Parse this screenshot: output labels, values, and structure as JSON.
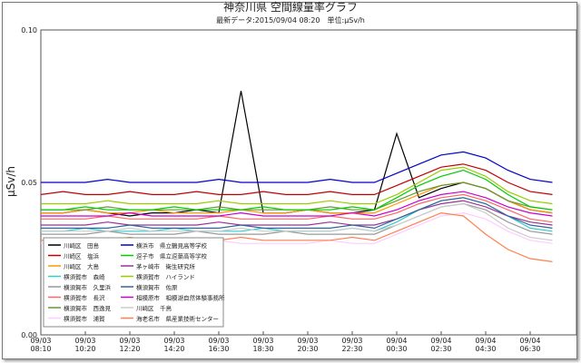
{
  "chart_data": {
    "type": "line",
    "title": "神奈川県 空間線量率グラフ",
    "subtitle": "最新データ:2015/09/04 08:20　単位:μSv/h",
    "y_label": "μSv/h",
    "categories": [
      "08:10",
      null,
      "10:20",
      null,
      "12:20",
      null,
      "14:20",
      null,
      "16:30",
      null,
      "18:30",
      null,
      "20:30",
      null,
      "22:30",
      null,
      "00:30",
      null,
      "02:30",
      null,
      "04:30",
      null,
      "06:30",
      null
    ],
    "category_dates": [
      "09/03",
      null,
      "09/03",
      null,
      "09/03",
      null,
      "09/03",
      null,
      "09/03",
      null,
      "09/03",
      null,
      "09/03",
      null,
      "09/03",
      null,
      "09/04",
      null,
      "09/04",
      null,
      "09/04",
      null,
      "09/04",
      null
    ],
    "ylim": [
      0,
      0.1
    ],
    "yticks": [
      {
        "value": 0,
        "label": "0.00"
      },
      0.05,
      {
        "value": 0.1,
        "label": "0.10"
      }
    ],
    "grid": false,
    "series": [
      {
        "name": "川崎区　田島",
        "color": "#000000",
        "values": [
          0.04,
          0.04,
          0.041,
          0.04,
          0.039,
          0.04,
          0.04,
          0.041,
          0.04,
          0.08,
          0.04,
          0.04,
          0.041,
          0.04,
          0.04,
          0.041,
          0.066,
          0.045,
          0.048,
          0.05,
          0.048,
          0.044,
          0.041,
          0.04
        ]
      },
      {
        "name": "川崎区　塩浜",
        "color": "#c00000",
        "values": [
          0.046,
          0.047,
          0.046,
          0.046,
          0.047,
          0.046,
          0.046,
          0.047,
          0.046,
          0.046,
          0.047,
          0.046,
          0.046,
          0.047,
          0.046,
          0.046,
          0.049,
          0.052,
          0.055,
          0.056,
          0.054,
          0.05,
          0.047,
          0.046
        ]
      },
      {
        "name": "川崎区　大島",
        "color": "#ff9900",
        "values": [
          0.04,
          0.04,
          0.041,
          0.04,
          0.04,
          0.041,
          0.04,
          0.04,
          0.04,
          0.041,
          0.04,
          0.04,
          0.041,
          0.04,
          0.04,
          0.04,
          0.043,
          0.046,
          0.049,
          0.05,
          0.048,
          0.044,
          0.041,
          0.04
        ]
      },
      {
        "name": "横須賀市　森崎",
        "color": "#33cccc",
        "values": [
          0.034,
          0.034,
          0.035,
          0.034,
          0.034,
          0.034,
          0.035,
          0.034,
          0.034,
          0.034,
          0.035,
          0.034,
          0.034,
          0.034,
          0.035,
          0.034,
          0.037,
          0.041,
          0.044,
          0.045,
          0.043,
          0.039,
          0.035,
          0.034
        ]
      },
      {
        "name": "横須賀市　久里浜",
        "color": "#999999",
        "values": [
          0.033,
          0.033,
          0.033,
          0.034,
          0.033,
          0.033,
          0.033,
          0.034,
          0.033,
          0.033,
          0.033,
          0.034,
          0.033,
          0.033,
          0.033,
          0.033,
          0.036,
          0.039,
          0.042,
          0.043,
          0.041,
          0.037,
          0.034,
          0.033
        ]
      },
      {
        "name": "横須賀市　長沢",
        "color": "#ff6666",
        "values": [
          0.038,
          0.038,
          0.038,
          0.039,
          0.038,
          0.038,
          0.038,
          0.038,
          0.039,
          0.038,
          0.038,
          0.038,
          0.038,
          0.039,
          0.038,
          0.038,
          0.04,
          0.043,
          0.045,
          0.046,
          0.044,
          0.041,
          0.038,
          0.037
        ]
      },
      {
        "name": "横須賀市　西逸見",
        "color": "#669933",
        "values": [
          0.041,
          0.041,
          0.041,
          0.042,
          0.041,
          0.041,
          0.041,
          0.041,
          0.042,
          0.041,
          0.041,
          0.041,
          0.041,
          0.042,
          0.041,
          0.041,
          0.044,
          0.047,
          0.049,
          0.05,
          0.048,
          0.044,
          0.042,
          0.041
        ]
      },
      {
        "name": "横須賀市　浦賀",
        "color": "#ffccff",
        "values": [
          0.03,
          0.03,
          0.03,
          0.031,
          0.03,
          0.03,
          0.03,
          0.03,
          0.031,
          0.03,
          0.03,
          0.03,
          0.03,
          0.031,
          0.03,
          0.03,
          0.033,
          0.036,
          0.039,
          0.04,
          0.038,
          0.034,
          0.031,
          0.03
        ]
      },
      {
        "name": "横浜市　県立鶴見高等学校",
        "color": "#0000cc",
        "values": [
          0.05,
          0.05,
          0.05,
          0.051,
          0.05,
          0.05,
          0.05,
          0.05,
          0.051,
          0.05,
          0.05,
          0.05,
          0.05,
          0.051,
          0.05,
          0.05,
          0.053,
          0.056,
          0.059,
          0.06,
          0.058,
          0.054,
          0.051,
          0.05
        ]
      },
      {
        "name": "逗子市　県立逗葉高等学校",
        "color": "#00cc00",
        "values": [
          0.041,
          0.041,
          0.042,
          0.041,
          0.041,
          0.041,
          0.042,
          0.041,
          0.041,
          0.041,
          0.042,
          0.041,
          0.041,
          0.041,
          0.042,
          0.041,
          0.045,
          0.049,
          0.052,
          0.054,
          0.051,
          0.046,
          0.042,
          0.041
        ]
      },
      {
        "name": "茅ヶ崎市　衛生研究所",
        "color": "#993399",
        "values": [
          0.036,
          0.036,
          0.036,
          0.037,
          0.036,
          0.036,
          0.036,
          0.036,
          0.037,
          0.036,
          0.036,
          0.036,
          0.036,
          0.037,
          0.036,
          0.036,
          0.038,
          0.041,
          0.043,
          0.044,
          0.042,
          0.039,
          0.037,
          0.036
        ]
      },
      {
        "name": "横須賀市　ハイランド",
        "color": "#99cc00",
        "values": [
          0.043,
          0.043,
          0.043,
          0.044,
          0.043,
          0.043,
          0.043,
          0.043,
          0.044,
          0.043,
          0.043,
          0.043,
          0.043,
          0.044,
          0.043,
          0.043,
          0.046,
          0.05,
          0.054,
          0.055,
          0.052,
          0.047,
          0.044,
          0.043
        ]
      },
      {
        "name": "横須賀市　佐原",
        "color": "#336699",
        "values": [
          0.035,
          0.035,
          0.035,
          0.035,
          0.036,
          0.035,
          0.035,
          0.035,
          0.035,
          0.036,
          0.035,
          0.035,
          0.035,
          0.035,
          0.036,
          0.035,
          0.038,
          0.041,
          0.044,
          0.045,
          0.043,
          0.039,
          0.036,
          0.035
        ]
      },
      {
        "name": "相模原市　相模湖自然体験事務所",
        "color": "#cc00cc",
        "values": [
          0.039,
          0.039,
          0.039,
          0.039,
          0.04,
          0.039,
          0.039,
          0.039,
          0.039,
          0.04,
          0.039,
          0.039,
          0.039,
          0.039,
          0.04,
          0.039,
          0.041,
          0.044,
          0.046,
          0.047,
          0.045,
          0.042,
          0.04,
          0.039
        ]
      },
      {
        "name": "川崎区　千鳥",
        "color": "#cccccc",
        "values": [
          0.034,
          0.034,
          0.034,
          0.034,
          0.035,
          0.034,
          0.034,
          0.034,
          0.034,
          0.035,
          0.034,
          0.034,
          0.034,
          0.034,
          0.035,
          0.034,
          0.036,
          0.039,
          0.042,
          0.043,
          0.04,
          0.035,
          0.032,
          0.031
        ]
      },
      {
        "name": "海老名市　県産業技術センター",
        "color": "#ff7f50",
        "values": [
          0.031,
          0.031,
          0.031,
          0.031,
          0.032,
          0.031,
          0.031,
          0.031,
          0.031,
          0.032,
          0.031,
          0.031,
          0.031,
          0.031,
          0.032,
          0.031,
          0.034,
          0.037,
          0.04,
          0.039,
          0.033,
          0.028,
          0.025,
          0.024
        ]
      }
    ]
  }
}
